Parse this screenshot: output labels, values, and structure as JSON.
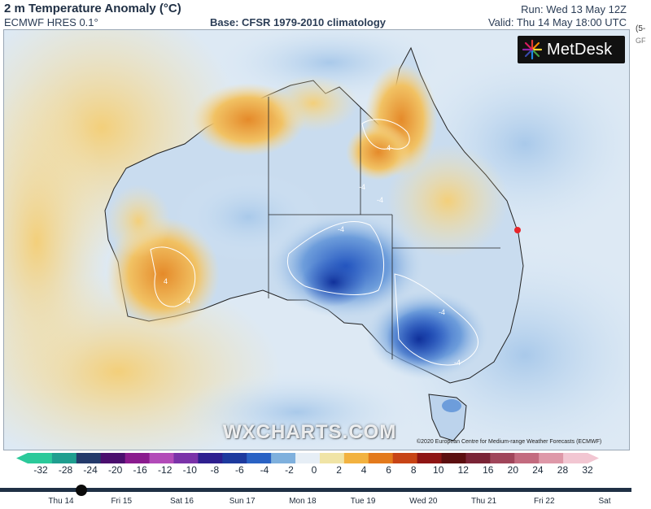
{
  "header": {
    "title": "2 m Temperature Anomaly (°C)",
    "model": "ECMWF HRES 0.1°",
    "base": "Base: CFSR 1979-2010 climatology",
    "run": "Run: Wed 13 May 12Z",
    "valid": "Valid: Thu 14 May 18:00 UTC",
    "side_label_1": "(5-",
    "side_label_2": "GF"
  },
  "logo": {
    "text": "MetDesk",
    "icon": "metdesk-starburst-icon"
  },
  "map": {
    "watermark": "WXCHARTS.COM",
    "copyright": "©2020 European Centre for Medium-range Weather Forecasts (ECMWF)",
    "contour_labels": [
      "4",
      "4",
      "4",
      "-4",
      "-4",
      "-4",
      "-4",
      "-4"
    ],
    "marker_color": "#e8262a"
  },
  "scale": {
    "ticks": [
      "-32",
      "-28",
      "-24",
      "-20",
      "-16",
      "-12",
      "-10",
      "-8",
      "-6",
      "-4",
      "-2",
      "0",
      "2",
      "4",
      "6",
      "8",
      "10",
      "12",
      "16",
      "20",
      "24",
      "28",
      "32"
    ],
    "colors": [
      "#2bc99a",
      "#1f9e8f",
      "#243a6b",
      "#4b0f6e",
      "#8a1b8e",
      "#b24bb8",
      "#7a32a8",
      "#2e1f8f",
      "#1d3a9e",
      "#2a62c4",
      "#7fb0dd",
      "#e6eef6",
      "#f0e4a6",
      "#f2b240",
      "#e37a1c",
      "#c74416",
      "#8e1514",
      "#5c0f10",
      "#7a2436",
      "#a0455a",
      "#c36b7f",
      "#de98a8",
      "#f2c6d2"
    ]
  },
  "timeline": {
    "days": [
      "Thu 14",
      "Fri 15",
      "Sat 16",
      "Sun 17",
      "Mon 18",
      "Tue 19",
      "Wed 20",
      "Thu 21",
      "Fri 22",
      "Sat"
    ],
    "current": "Thu 14"
  }
}
